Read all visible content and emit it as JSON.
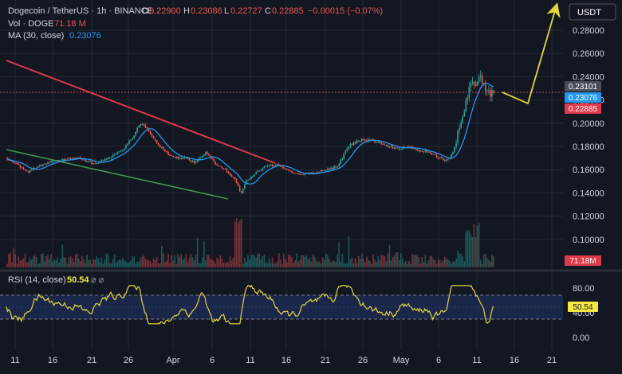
{
  "colors": {
    "background": "#131722",
    "grid": "#242836",
    "text": "#d1d4dc",
    "up": "#26a69a",
    "down": "#ef5350",
    "ma": "#2196f3",
    "rsi": "#e6d53a",
    "downtrend_line": "#e03a4a",
    "support_line": "#3c9b48",
    "projection_arrow": "#e6d53a",
    "price_line": "#d6414a"
  },
  "legend": {
    "symbol": "Dogecoin / TetherUS · 1h · BINANCE",
    "open_label": "O",
    "open": "0.22900",
    "high_label": "H",
    "high": "0.23086",
    "low_label": "L",
    "low": "0.22727",
    "close_label": "C",
    "close": "0.22885",
    "change": "−0.00015 (−0.07%)",
    "vol_label": "Vol · DOGE",
    "vol_value": "71.18 M",
    "ma_label": "MA (30, close)",
    "ma_value": "0.23076"
  },
  "currency_button": "USDT",
  "price_badges": {
    "high": "0.23101",
    "ma": "0.23076",
    "last": "0.22885",
    "volume": "71.18M"
  },
  "rsi_legend": {
    "label": "RSI (14, close)",
    "value": "50.54",
    "icons": "⌀ ⌀"
  },
  "rsi_badge": "50.54",
  "chart_data": {
    "type": "candlestick",
    "interval": "1h",
    "price_axis": {
      "ylim": [
        0.09,
        0.3
      ],
      "ticks": [
        "0.28000",
        "0.26000",
        "0.24000",
        "0.22000",
        "0.20000",
        "0.18000",
        "0.16000",
        "0.14000",
        "0.12000",
        "0.10000"
      ]
    },
    "rsi_axis": {
      "ylim": [
        -10,
        90
      ],
      "ticks": [
        "80.00",
        "40.00",
        "0.00"
      ],
      "band": [
        30,
        70
      ]
    },
    "time_axis": [
      "11",
      "16",
      "21",
      "26",
      "Apr",
      "6",
      "11",
      "16",
      "21",
      "26",
      "May",
      "6",
      "11",
      "16",
      "21"
    ],
    "price_path": [
      [
        0,
        0.17
      ],
      [
        4,
        0.158
      ],
      [
        7,
        0.165
      ],
      [
        10,
        0.168
      ],
      [
        14,
        0.17
      ],
      [
        17,
        0.165
      ],
      [
        20,
        0.17
      ],
      [
        23,
        0.178
      ],
      [
        25,
        0.19
      ],
      [
        26,
        0.2
      ],
      [
        27,
        0.197
      ],
      [
        29,
        0.186
      ],
      [
        31,
        0.175
      ],
      [
        33,
        0.17
      ],
      [
        35,
        0.17
      ],
      [
        37,
        0.166
      ],
      [
        39,
        0.175
      ],
      [
        41,
        0.165
      ],
      [
        43,
        0.16
      ],
      [
        45,
        0.15
      ],
      [
        46,
        0.139
      ],
      [
        47,
        0.15
      ],
      [
        49,
        0.158
      ],
      [
        51,
        0.163
      ],
      [
        53,
        0.165
      ],
      [
        55,
        0.16
      ],
      [
        57,
        0.156
      ],
      [
        60,
        0.157
      ],
      [
        63,
        0.16
      ],
      [
        65,
        0.163
      ],
      [
        67,
        0.18
      ],
      [
        69,
        0.185
      ],
      [
        71,
        0.186
      ],
      [
        73,
        0.183
      ],
      [
        75,
        0.18
      ],
      [
        77,
        0.178
      ],
      [
        79,
        0.18
      ],
      [
        81,
        0.176
      ],
      [
        83,
        0.176
      ],
      [
        84,
        0.172
      ],
      [
        86,
        0.168
      ],
      [
        87,
        0.17
      ],
      [
        88,
        0.18
      ],
      [
        89,
        0.2
      ],
      [
        90,
        0.215
      ],
      [
        91,
        0.235
      ],
      [
        92,
        0.232
      ],
      [
        93,
        0.24
      ],
      [
        94,
        0.23
      ],
      [
        95,
        0.224
      ],
      [
        95.6,
        0.229
      ]
    ],
    "ma_value": 0.23076,
    "last_price": 0.22885,
    "volume_last": "71.18M",
    "rsi_last": 50.54
  }
}
